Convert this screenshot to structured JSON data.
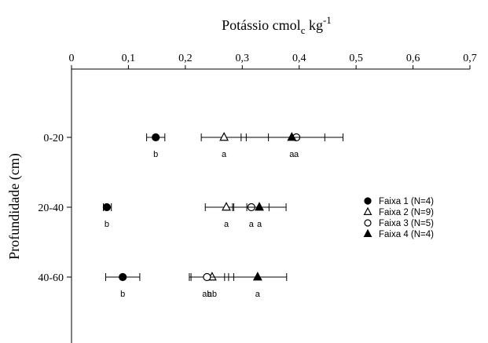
{
  "chart_data": {
    "type": "scatter",
    "title_main": "Potássio cmol",
    "title_sub": "c",
    "title_unit": " kg",
    "title_sup": "-1",
    "ylabel": "Profundidade (cm)",
    "xlim": [
      0,
      0.7
    ],
    "x_ticks": [
      "0",
      "0,1",
      "0,2",
      "0,3",
      "0,4",
      "0,5",
      "0,6",
      "0,7"
    ],
    "x_axis_position": "top",
    "categories": [
      "0-20",
      "20-40",
      "40-60"
    ],
    "series": [
      {
        "name": "Faixa 1 (N=4)",
        "marker": "circle-filled",
        "color": "#000000",
        "values": [
          0.148,
          0.062,
          0.09
        ],
        "err_low": [
          0.132,
          0.056,
          0.06
        ],
        "err_high": [
          0.164,
          0.07,
          0.12
        ],
        "letters": [
          "b",
          "b",
          "b"
        ]
      },
      {
        "name": "Faixa 2 (N=9)",
        "marker": "triangle-open",
        "color": "#000000",
        "values": [
          0.268,
          0.272,
          0.247
        ],
        "err_low": [
          0.228,
          0.235,
          0.21
        ],
        "err_high": [
          0.307,
          0.308,
          0.285
        ],
        "letters": [
          "a",
          "a",
          "ab"
        ]
      },
      {
        "name": "Faixa 3 (N=5)",
        "marker": "circle-open",
        "color": "#000000",
        "values": [
          0.395,
          0.316,
          0.238
        ],
        "err_low": [
          0.346,
          0.285,
          0.207
        ],
        "err_high": [
          0.445,
          0.347,
          0.269
        ],
        "letters": [
          "a",
          "a",
          "ab"
        ]
      },
      {
        "name": "Faixa 4 (N=4)",
        "marker": "triangle-filled",
        "color": "#000000",
        "values": [
          0.387,
          0.33,
          0.327
        ],
        "err_low": [
          0.298,
          0.283,
          0.276
        ],
        "err_high": [
          0.477,
          0.377,
          0.378
        ],
        "letters": [
          "a",
          "a",
          "a"
        ]
      }
    ],
    "legend_placement": "right",
    "grid": false
  }
}
